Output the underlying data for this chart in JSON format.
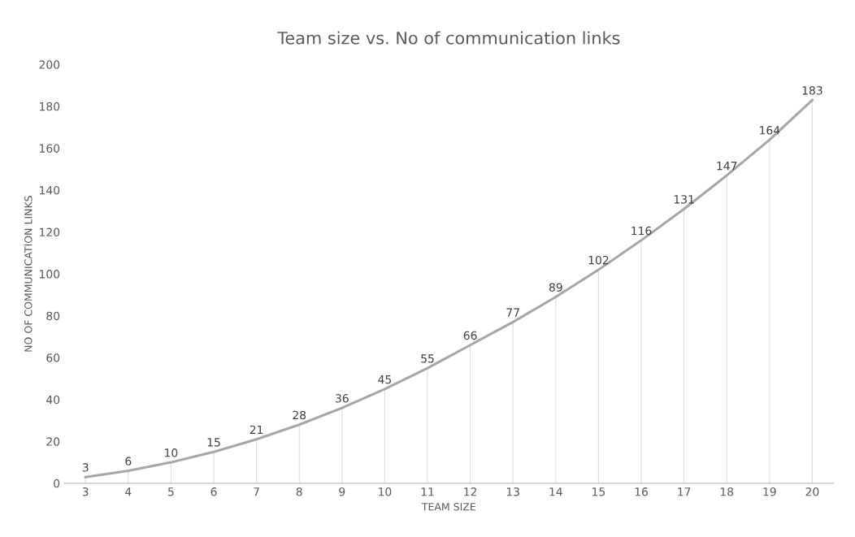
{
  "chart_data": {
    "type": "line",
    "title": "Team size vs. No of communication links",
    "xlabel": "TEAM SIZE",
    "ylabel": "NO OF COMMUNICATION LINKS",
    "categories": [
      "3",
      "4",
      "5",
      "6",
      "7",
      "8",
      "9",
      "10",
      "11",
      "12",
      "13",
      "14",
      "15",
      "16",
      "17",
      "18",
      "19",
      "20"
    ],
    "series": [
      {
        "color": "#a6a6a6",
        "values": [
          3,
          6,
          10,
          15,
          21,
          28,
          36,
          45,
          55,
          66,
          77,
          89,
          102,
          116,
          131,
          147,
          164,
          183
        ]
      }
    ],
    "data_labels": true,
    "ylim": [
      0,
      200
    ],
    "yticks": [
      0,
      20,
      40,
      60,
      80,
      100,
      120,
      140,
      160,
      180,
      200
    ],
    "grid": "x",
    "legend": false,
    "marker": "none",
    "line_style": "solid"
  }
}
